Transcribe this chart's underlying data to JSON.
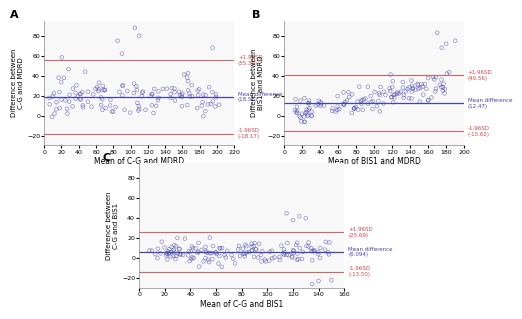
{
  "A": {
    "title": "A",
    "xlabel": "Mean of C-G and MDRD",
    "ylabel": "Difference between\nC-G and MDRD",
    "mean_diff": 18.56,
    "upper_loa": 55.3,
    "lower_loa": -18.17,
    "xlim": [
      0,
      220
    ],
    "ylim": [
      -30,
      95
    ],
    "xticks": [
      0,
      20,
      40,
      60,
      80,
      100,
      120,
      140,
      160,
      180,
      200,
      220
    ],
    "yticks": [
      -20,
      0,
      20,
      40,
      60,
      80
    ],
    "label_upper": "+1.96SD\n(55.30)",
    "label_mean": "Mean difference\n(18.56)",
    "label_lower": "-1.96SD\n(-18.17)"
  },
  "B": {
    "title": "B",
    "xlabel": "Mean of BIS1 and MDRD",
    "ylabel": "Difference between\nBIS1 and MDRD",
    "mean_diff": 12.47,
    "upper_loa": 40.56,
    "lower_loa": -15.62,
    "xlim": [
      0,
      200
    ],
    "ylim": [
      -30,
      95
    ],
    "xticks": [
      0,
      20,
      40,
      60,
      80,
      100,
      120,
      140,
      160,
      180,
      200
    ],
    "yticks": [
      -20,
      0,
      20,
      40,
      60,
      80
    ],
    "label_upper": "+1.96SD\n(40.56)",
    "label_mean": "Mean difference\n(12.47)",
    "label_lower": "-1.96SD\n(-15.62)"
  },
  "C": {
    "title": "C",
    "xlabel": "Mean of C-G and BIS1",
    "ylabel": "Difference between\nC-G and BIS1",
    "mean_diff": 6.094,
    "upper_loa": 25.69,
    "lower_loa": -13.5,
    "xlim": [
      0,
      160
    ],
    "ylim": [
      -30,
      95
    ],
    "xticks": [
      0,
      20,
      40,
      60,
      80,
      100,
      120,
      140,
      160
    ],
    "yticks": [
      -20,
      0,
      20,
      40,
      60,
      80
    ],
    "label_upper": "+1.96SD\n(25.69)",
    "label_mean": "Mean difference\n(6.094)",
    "label_lower": "-1.96SD\n(-13.50)"
  },
  "dot_color": "#4444aa",
  "mean_line_color": "#4444aa",
  "loa_line_color": "#cc6666",
  "mean_label_color": "#4444aa",
  "loa_label_color": "#cc4444",
  "bg_color": "#ffffff",
  "dot_size": 7,
  "dot_alpha": 0.6
}
